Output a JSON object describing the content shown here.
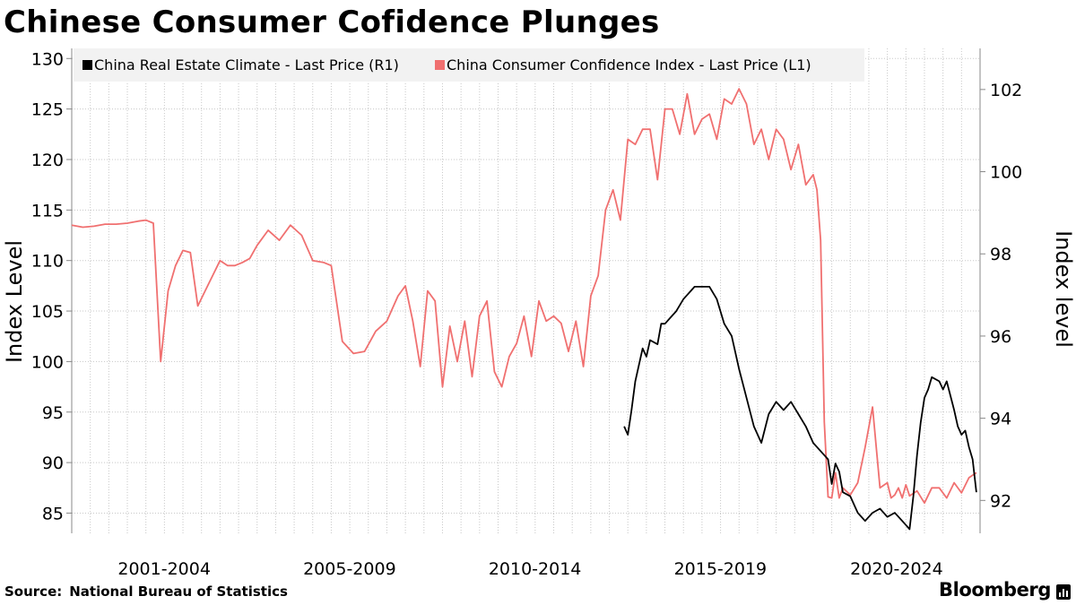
{
  "title": "Chinese Consumer Cofidence Plunges",
  "source": {
    "label": "Source:",
    "value": "National Bureau of Statistics"
  },
  "brand": "Bloomberg",
  "chart_data": {
    "type": "line",
    "title": "Chinese Consumer Cofidence Plunges",
    "xlabel": "",
    "x_range": [
      2000,
      2024.5
    ],
    "x_categories": [
      "2001-2004",
      "2005-2009",
      "2010-2014",
      "2015-2019",
      "2020-2024"
    ],
    "category_ranges": [
      [
        2000,
        2004.99
      ],
      [
        2005,
        2009.99
      ],
      [
        2010,
        2014.99
      ],
      [
        2015,
        2019.99
      ],
      [
        2020,
        2024.99
      ]
    ],
    "left_axis": {
      "label": "Index Level",
      "ylim": [
        83,
        131
      ],
      "ticks": [
        85,
        90,
        95,
        100,
        105,
        110,
        115,
        120,
        125,
        130
      ]
    },
    "right_axis": {
      "label": "Index level",
      "ylim": [
        91.2,
        103.0
      ],
      "ticks": [
        92,
        94,
        96,
        98,
        100,
        102
      ]
    },
    "legend": {
      "position": "top-left"
    },
    "series": [
      {
        "name": "China Real Estate Climate - Last Price (R1)",
        "axis": "right",
        "color": "#000000",
        "x": [
          2014.9,
          2015.0,
          2015.1,
          2015.2,
          2015.3,
          2015.4,
          2015.5,
          2015.6,
          2015.8,
          2015.9,
          2016.0,
          2016.2,
          2016.3,
          2016.5,
          2016.7,
          2016.8,
          2017.0,
          2017.2,
          2017.4,
          2017.6,
          2017.8,
          2018.0,
          2018.2,
          2018.4,
          2018.6,
          2018.8,
          2019.0,
          2019.2,
          2019.4,
          2019.6,
          2019.8,
          2020.0,
          2020.2,
          2020.4,
          2020.5,
          2020.6,
          2020.7,
          2020.8,
          2021.0,
          2021.2,
          2021.4,
          2021.6,
          2021.8,
          2022.0,
          2022.2,
          2022.4,
          2022.6,
          2022.7,
          2022.8,
          2022.9,
          2023.0,
          2023.1,
          2023.2,
          2023.4,
          2023.5,
          2023.6,
          2023.8,
          2023.9,
          2024.0,
          2024.1,
          2024.2,
          2024.3,
          2024.4
        ],
        "y": [
          93.8,
          93.6,
          94.2,
          94.9,
          95.3,
          95.7,
          95.5,
          95.9,
          95.8,
          96.3,
          96.3,
          96.5,
          96.6,
          96.9,
          97.1,
          97.2,
          97.2,
          97.2,
          96.9,
          96.3,
          96.0,
          95.2,
          94.5,
          93.8,
          93.4,
          94.1,
          94.4,
          94.2,
          94.4,
          94.1,
          93.8,
          93.4,
          93.2,
          93.0,
          92.4,
          92.9,
          92.7,
          92.2,
          92.1,
          91.7,
          91.5,
          91.7,
          91.8,
          91.6,
          91.7,
          91.5,
          91.3,
          92.1,
          93.1,
          93.9,
          94.5,
          94.7,
          95.0,
          94.9,
          94.7,
          94.9,
          94.2,
          93.8,
          93.6,
          93.7,
          93.3,
          93.0,
          92.2
        ]
      },
      {
        "name": "China Consumer Confidence Index - Last Price (L1)",
        "axis": "left",
        "color": "#f07070",
        "x": [
          2000.0,
          2000.3,
          2000.6,
          2000.9,
          2001.2,
          2001.5,
          2001.8,
          2002.0,
          2002.2,
          2002.4,
          2002.6,
          2002.8,
          2003.0,
          2003.2,
          2003.4,
          2003.6,
          2003.8,
          2004.0,
          2004.2,
          2004.4,
          2004.6,
          2004.8,
          2005.0,
          2005.3,
          2005.6,
          2005.9,
          2006.2,
          2006.5,
          2006.8,
          2007.0,
          2007.3,
          2007.6,
          2007.9,
          2008.2,
          2008.5,
          2008.8,
          2009.0,
          2009.2,
          2009.4,
          2009.6,
          2009.8,
          2010.0,
          2010.2,
          2010.4,
          2010.6,
          2010.8,
          2011.0,
          2011.2,
          2011.4,
          2011.6,
          2011.8,
          2012.0,
          2012.2,
          2012.4,
          2012.6,
          2012.8,
          2013.0,
          2013.2,
          2013.4,
          2013.6,
          2013.8,
          2014.0,
          2014.2,
          2014.4,
          2014.6,
          2014.8,
          2015.0,
          2015.2,
          2015.4,
          2015.6,
          2015.8,
          2016.0,
          2016.2,
          2016.4,
          2016.6,
          2016.8,
          2017.0,
          2017.2,
          2017.4,
          2017.6,
          2017.8,
          2018.0,
          2018.2,
          2018.4,
          2018.6,
          2018.8,
          2019.0,
          2019.2,
          2019.4,
          2019.6,
          2019.8,
          2020.0,
          2020.1,
          2020.2,
          2020.3,
          2020.4,
          2020.5,
          2020.6,
          2020.7,
          2020.8,
          2021.0,
          2021.2,
          2021.4,
          2021.6,
          2021.8,
          2022.0,
          2022.1,
          2022.2,
          2022.3,
          2022.4,
          2022.5,
          2022.6,
          2022.8,
          2023.0,
          2023.2,
          2023.4,
          2023.6,
          2023.8,
          2024.0,
          2024.2,
          2024.4
        ],
        "y": [
          113.5,
          113.3,
          113.4,
          113.6,
          113.6,
          113.7,
          113.9,
          114.0,
          113.7,
          100.0,
          107.0,
          109.5,
          111.0,
          110.8,
          105.5,
          107.0,
          108.5,
          110.0,
          109.5,
          109.5,
          109.8,
          110.2,
          111.5,
          113.0,
          112.0,
          113.5,
          112.5,
          110.0,
          109.8,
          109.5,
          102.0,
          100.8,
          101.0,
          103.0,
          104.0,
          106.5,
          107.5,
          104.0,
          99.5,
          107.0,
          106.0,
          97.5,
          103.5,
          100.0,
          104.0,
          98.5,
          104.5,
          106.0,
          99.0,
          97.5,
          100.5,
          101.8,
          104.5,
          100.5,
          106.0,
          104.0,
          104.5,
          103.8,
          101.0,
          104.0,
          99.5,
          106.5,
          108.5,
          115.0,
          117.0,
          114.0,
          122.0,
          121.5,
          123.0,
          123.0,
          118.0,
          125.0,
          125.0,
          122.5,
          126.5,
          122.5,
          124.0,
          124.5,
          122.0,
          126.0,
          125.5,
          127.0,
          125.5,
          121.5,
          123.0,
          120.0,
          123.0,
          122.0,
          119.0,
          121.5,
          117.5,
          118.5,
          117.0,
          112.0,
          94.0,
          86.6,
          86.5,
          89.0,
          86.5,
          87.5,
          86.8,
          88.0,
          91.5,
          95.5,
          87.5,
          88.0,
          86.5,
          86.8,
          87.5,
          86.5,
          87.8,
          86.7,
          87.2,
          86.0,
          87.5,
          87.5,
          86.5,
          88.0,
          87.0,
          88.5,
          89.0
        ]
      }
    ]
  }
}
